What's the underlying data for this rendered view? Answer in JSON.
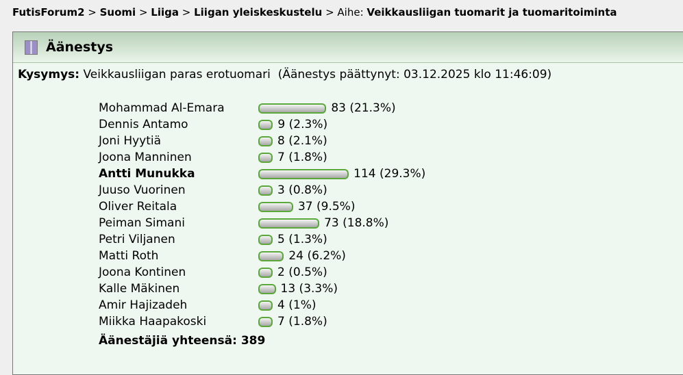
{
  "breadcrumb": {
    "items": [
      "FutisForum2",
      "Suomi",
      "Liiga",
      "Liigan yleiskeskustelu"
    ],
    "topic_label": "Aihe:",
    "topic": "Veikkausliigan tuomarit ja tuomaritoiminta"
  },
  "poll": {
    "title": "Äänestys",
    "icon": "poll-chart-icon",
    "question_label": "Kysymys:",
    "question": "Veikkausliigan paras erotuomari",
    "status": "(Äänestys päättynyt: 03.12.2025 klo 11:46:09)",
    "options": [
      {
        "name": "Mohammad Al-Emara",
        "votes": 83,
        "percent": "21.3%"
      },
      {
        "name": "Dennis Antamo",
        "votes": 9,
        "percent": "2.3%"
      },
      {
        "name": "Joni Hyytiä",
        "votes": 8,
        "percent": "2.1%"
      },
      {
        "name": "Joona Manninen",
        "votes": 7,
        "percent": "1.8%"
      },
      {
        "name": "Antti Munukka",
        "votes": 114,
        "percent": "29.3%",
        "winner": true
      },
      {
        "name": "Juuso Vuorinen",
        "votes": 3,
        "percent": "0.8%"
      },
      {
        "name": "Oliver Reitala",
        "votes": 37,
        "percent": "9.5%"
      },
      {
        "name": "Peiman Simani",
        "votes": 73,
        "percent": "18.8%"
      },
      {
        "name": "Petri Viljanen",
        "votes": 5,
        "percent": "1.3%"
      },
      {
        "name": "Matti Roth",
        "votes": 24,
        "percent": "6.2%"
      },
      {
        "name": "Joona Kontinen",
        "votes": 2,
        "percent": "0.5%"
      },
      {
        "name": "Kalle Mäkinen",
        "votes": 13,
        "percent": "3.3%"
      },
      {
        "name": "Amir Hajizadeh",
        "votes": 4,
        "percent": "1%"
      },
      {
        "name": "Miikka Haapakoski",
        "votes": 7,
        "percent": "1.8%"
      }
    ],
    "total_label": "Äänestäjiä yhteensä:",
    "total": "389"
  }
}
